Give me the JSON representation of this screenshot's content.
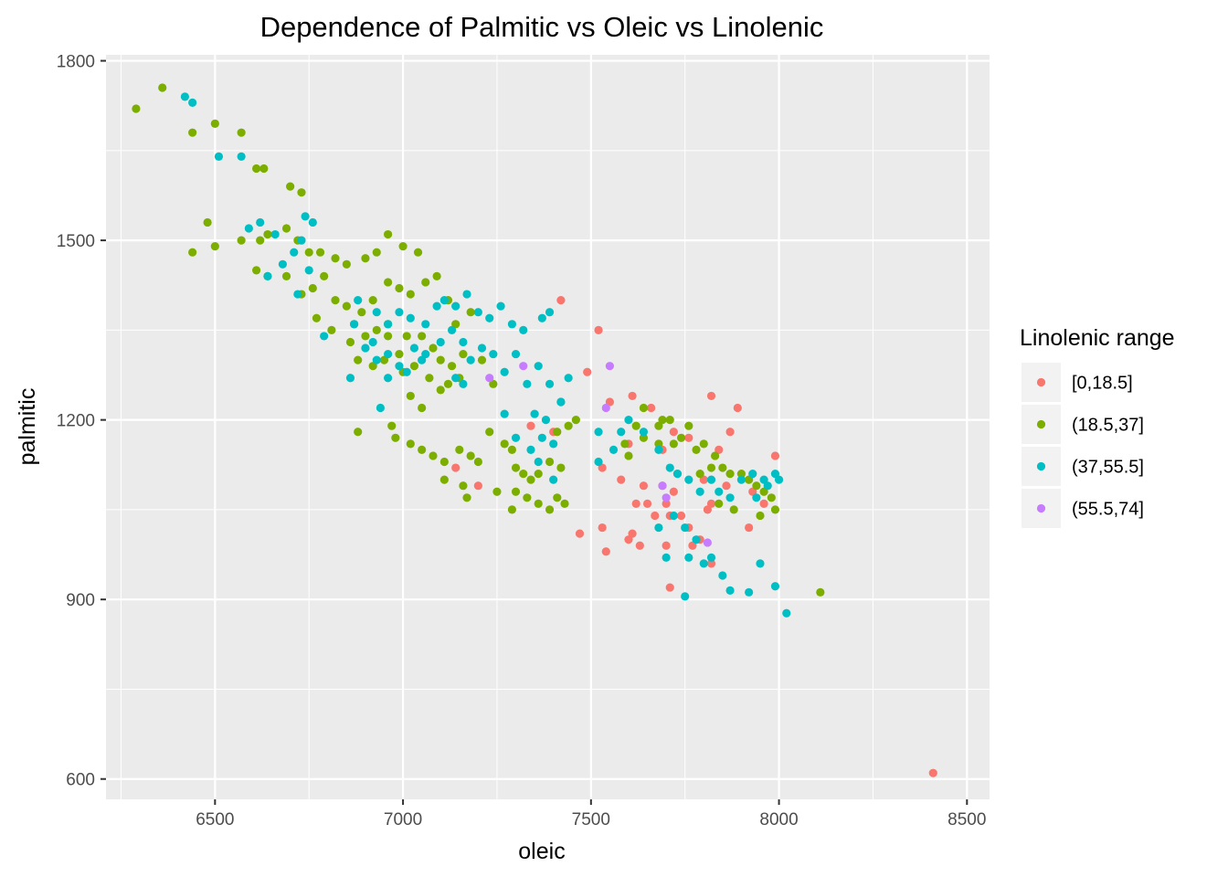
{
  "chart_data": {
    "type": "scatter",
    "title": "Dependence of Palmitic vs Oleic vs Linolenic",
    "xlabel": "oleic",
    "ylabel": "palmitic",
    "xlim": [
      6210,
      8560
    ],
    "ylim": [
      566,
      1810
    ],
    "x_ticks": [
      6500,
      7000,
      7500,
      8000,
      8500
    ],
    "y_ticks": [
      600,
      900,
      1200,
      1500,
      1800
    ],
    "x_tick_labels": [
      "6500",
      "7000",
      "7500",
      "8000",
      "8500"
    ],
    "y_tick_labels": [
      "600",
      "900",
      "1200",
      "1500",
      "1800"
    ],
    "grid": true,
    "panel_background": "#ebebeb",
    "legend": {
      "title": "Linolenic range",
      "placement": "right"
    },
    "series": [
      {
        "name": "[0,18.5]",
        "color": "#F8766D",
        "points": [
          [
            7420,
            1400
          ],
          [
            7520,
            1350
          ],
          [
            7490,
            1280
          ],
          [
            7550,
            1230
          ],
          [
            7610,
            1240
          ],
          [
            7660,
            1220
          ],
          [
            7720,
            1180
          ],
          [
            7820,
            1240
          ],
          [
            7890,
            1220
          ],
          [
            7870,
            1180
          ],
          [
            7840,
            1150
          ],
          [
            7760,
            1170
          ],
          [
            7690,
            1150
          ],
          [
            7600,
            1160
          ],
          [
            7530,
            1120
          ],
          [
            7580,
            1100
          ],
          [
            7640,
            1090
          ],
          [
            7720,
            1080
          ],
          [
            7800,
            1100
          ],
          [
            7860,
            1090
          ],
          [
            7930,
            1080
          ],
          [
            7990,
            1140
          ],
          [
            7650,
            1060
          ],
          [
            7700,
            1060
          ],
          [
            7740,
            1040
          ],
          [
            7620,
            1060
          ],
          [
            7670,
            1040
          ],
          [
            7760,
            1020
          ],
          [
            7710,
            1040
          ],
          [
            7790,
            1000
          ],
          [
            7810,
            1050
          ],
          [
            7920,
            1020
          ],
          [
            7530,
            1020
          ],
          [
            7610,
            1010
          ],
          [
            7470,
            1010
          ],
          [
            7630,
            990
          ],
          [
            7700,
            990
          ],
          [
            7770,
            990
          ],
          [
            7710,
            920
          ],
          [
            7820,
            960
          ],
          [
            7540,
            980
          ],
          [
            7140,
            1120
          ],
          [
            7200,
            1090
          ],
          [
            7400,
            1180
          ],
          [
            7340,
            1190
          ],
          [
            7960,
            1060
          ],
          [
            7690,
            1090
          ],
          [
            7820,
            1060
          ],
          [
            7730,
            1110
          ],
          [
            7600,
            1000
          ],
          [
            8410,
            610
          ]
        ]
      },
      {
        "name": "(18.5,37]",
        "color": "#7CAE00",
        "points": [
          [
            6290,
            1720
          ],
          [
            6360,
            1755
          ],
          [
            6440,
            1680
          ],
          [
            6500,
            1695
          ],
          [
            6570,
            1680
          ],
          [
            6610,
            1620
          ],
          [
            6630,
            1620
          ],
          [
            6700,
            1590
          ],
          [
            6730,
            1580
          ],
          [
            6480,
            1530
          ],
          [
            6440,
            1480
          ],
          [
            6500,
            1490
          ],
          [
            6570,
            1500
          ],
          [
            6620,
            1500
          ],
          [
            6640,
            1510
          ],
          [
            6690,
            1520
          ],
          [
            6720,
            1500
          ],
          [
            6750,
            1480
          ],
          [
            6780,
            1480
          ],
          [
            6820,
            1470
          ],
          [
            6850,
            1460
          ],
          [
            6900,
            1470
          ],
          [
            6930,
            1480
          ],
          [
            6960,
            1510
          ],
          [
            7000,
            1490
          ],
          [
            7040,
            1480
          ],
          [
            6610,
            1450
          ],
          [
            6640,
            1440
          ],
          [
            6690,
            1440
          ],
          [
            6730,
            1410
          ],
          [
            6760,
            1420
          ],
          [
            6790,
            1440
          ],
          [
            6820,
            1400
          ],
          [
            6850,
            1390
          ],
          [
            6890,
            1380
          ],
          [
            6920,
            1400
          ],
          [
            6960,
            1430
          ],
          [
            6990,
            1420
          ],
          [
            7020,
            1410
          ],
          [
            7060,
            1430
          ],
          [
            7090,
            1440
          ],
          [
            7120,
            1400
          ],
          [
            6770,
            1370
          ],
          [
            6810,
            1350
          ],
          [
            6870,
            1360
          ],
          [
            6900,
            1340
          ],
          [
            6930,
            1350
          ],
          [
            6960,
            1360
          ],
          [
            7010,
            1340
          ],
          [
            7050,
            1340
          ],
          [
            7080,
            1320
          ],
          [
            7100,
            1300
          ],
          [
            7130,
            1290
          ],
          [
            7160,
            1310
          ],
          [
            6950,
            1300
          ],
          [
            6990,
            1310
          ],
          [
            7030,
            1290
          ],
          [
            7000,
            1280
          ],
          [
            7070,
            1270
          ],
          [
            7120,
            1260
          ],
          [
            7150,
            1270
          ],
          [
            6880,
            1180
          ],
          [
            6970,
            1190
          ],
          [
            6980,
            1170
          ],
          [
            7020,
            1160
          ],
          [
            7050,
            1150
          ],
          [
            7080,
            1140
          ],
          [
            7110,
            1130
          ],
          [
            7150,
            1150
          ],
          [
            7180,
            1140
          ],
          [
            7110,
            1100
          ],
          [
            7160,
            1090
          ],
          [
            7170,
            1070
          ],
          [
            7200,
            1130
          ],
          [
            7230,
            1180
          ],
          [
            7270,
            1160
          ],
          [
            7290,
            1150
          ],
          [
            7300,
            1120
          ],
          [
            7320,
            1110
          ],
          [
            7340,
            1100
          ],
          [
            7360,
            1110
          ],
          [
            7390,
            1130
          ],
          [
            7420,
            1120
          ],
          [
            7300,
            1080
          ],
          [
            7330,
            1070
          ],
          [
            7360,
            1060
          ],
          [
            7390,
            1050
          ],
          [
            7410,
            1070
          ],
          [
            7430,
            1060
          ],
          [
            7250,
            1080
          ],
          [
            7290,
            1050
          ],
          [
            7410,
            1180
          ],
          [
            7440,
            1190
          ],
          [
            7460,
            1200
          ],
          [
            7590,
            1160
          ],
          [
            7620,
            1190
          ],
          [
            7640,
            1170
          ],
          [
            7680,
            1160
          ],
          [
            7710,
            1200
          ],
          [
            7740,
            1170
          ],
          [
            7760,
            1190
          ],
          [
            7780,
            1150
          ],
          [
            7800,
            1160
          ],
          [
            7830,
            1140
          ],
          [
            7850,
            1120
          ],
          [
            7870,
            1110
          ],
          [
            7900,
            1110
          ],
          [
            7920,
            1100
          ],
          [
            7940,
            1090
          ],
          [
            7960,
            1080
          ],
          [
            7980,
            1070
          ],
          [
            7990,
            1050
          ],
          [
            7950,
            1040
          ],
          [
            7880,
            1050
          ],
          [
            7840,
            1060
          ],
          [
            8110,
            912
          ],
          [
            7690,
            1200
          ],
          [
            7720,
            1160
          ],
          [
            7790,
            1110
          ],
          [
            7640,
            1220
          ],
          [
            7680,
            1190
          ],
          [
            7820,
            1120
          ],
          [
            7600,
            1140
          ],
          [
            7020,
            1240
          ],
          [
            7050,
            1220
          ],
          [
            7100,
            1250
          ],
          [
            6920,
            1290
          ],
          [
            6860,
            1330
          ],
          [
            6880,
            1300
          ],
          [
            6960,
            1340
          ],
          [
            7140,
            1360
          ],
          [
            7180,
            1380
          ],
          [
            7210,
            1300
          ],
          [
            7240,
            1260
          ]
        ]
      },
      {
        "name": "(37,55.5]",
        "color": "#00BFC4",
        "points": [
          [
            6420,
            1740
          ],
          [
            6440,
            1730
          ],
          [
            6510,
            1640
          ],
          [
            6570,
            1640
          ],
          [
            6590,
            1520
          ],
          [
            6620,
            1530
          ],
          [
            6660,
            1510
          ],
          [
            6710,
            1480
          ],
          [
            6740,
            1540
          ],
          [
            6760,
            1530
          ],
          [
            6730,
            1500
          ],
          [
            6640,
            1440
          ],
          [
            6680,
            1460
          ],
          [
            6750,
            1450
          ],
          [
            6720,
            1410
          ],
          [
            6790,
            1340
          ],
          [
            6880,
            1400
          ],
          [
            6930,
            1380
          ],
          [
            6960,
            1360
          ],
          [
            6990,
            1380
          ],
          [
            7020,
            1370
          ],
          [
            7060,
            1360
          ],
          [
            7090,
            1390
          ],
          [
            7110,
            1400
          ],
          [
            7140,
            1390
          ],
          [
            7170,
            1410
          ],
          [
            7200,
            1380
          ],
          [
            7230,
            1370
          ],
          [
            7260,
            1390
          ],
          [
            7290,
            1360
          ],
          [
            7320,
            1350
          ],
          [
            7370,
            1370
          ],
          [
            7390,
            1380
          ],
          [
            6870,
            1360
          ],
          [
            6900,
            1320
          ],
          [
            6930,
            1300
          ],
          [
            6960,
            1310
          ],
          [
            6990,
            1290
          ],
          [
            7030,
            1320
          ],
          [
            7060,
            1310
          ],
          [
            7100,
            1330
          ],
          [
            7130,
            1350
          ],
          [
            7160,
            1330
          ],
          [
            7180,
            1300
          ],
          [
            7210,
            1320
          ],
          [
            7240,
            1310
          ],
          [
            7270,
            1280
          ],
          [
            7300,
            1310
          ],
          [
            7330,
            1260
          ],
          [
            7360,
            1290
          ],
          [
            7390,
            1260
          ],
          [
            7420,
            1230
          ],
          [
            7440,
            1270
          ],
          [
            6860,
            1270
          ],
          [
            6960,
            1270
          ],
          [
            6940,
            1220
          ],
          [
            7350,
            1210
          ],
          [
            7380,
            1200
          ],
          [
            7420,
            1230
          ],
          [
            7270,
            1210
          ],
          [
            7300,
            1170
          ],
          [
            7360,
            1130
          ],
          [
            7400,
            1100
          ],
          [
            7520,
            1130
          ],
          [
            7560,
            1150
          ],
          [
            7520,
            1180
          ],
          [
            7580,
            1180
          ],
          [
            7600,
            1200
          ],
          [
            7640,
            1180
          ],
          [
            7680,
            1150
          ],
          [
            7710,
            1120
          ],
          [
            7730,
            1110
          ],
          [
            7760,
            1100
          ],
          [
            7790,
            1080
          ],
          [
            7820,
            1100
          ],
          [
            7840,
            1080
          ],
          [
            7870,
            1070
          ],
          [
            7900,
            1100
          ],
          [
            7930,
            1110
          ],
          [
            7960,
            1100
          ],
          [
            7990,
            1110
          ],
          [
            8000,
            1100
          ],
          [
            7720,
            1040
          ],
          [
            7750,
            1020
          ],
          [
            7780,
            1000
          ],
          [
            7800,
            960
          ],
          [
            7820,
            970
          ],
          [
            7760,
            970
          ],
          [
            7700,
            970
          ],
          [
            7750,
            905
          ],
          [
            7870,
            915
          ],
          [
            7920,
            912
          ],
          [
            7950,
            960
          ],
          [
            7990,
            922
          ],
          [
            8020,
            877
          ],
          [
            7850,
            940
          ],
          [
            7680,
            1020
          ],
          [
            7940,
            1070
          ],
          [
            7970,
            1090
          ],
          [
            7140,
            1270
          ],
          [
            7160,
            1260
          ],
          [
            7010,
            1280
          ],
          [
            7050,
            1300
          ],
          [
            6920,
            1330
          ],
          [
            7400,
            1160
          ],
          [
            7340,
            1150
          ],
          [
            7370,
            1170
          ]
        ]
      },
      {
        "name": "(55.5,74]",
        "color": "#C77CFF",
        "points": [
          [
            7230,
            1270
          ],
          [
            7320,
            1290
          ],
          [
            7550,
            1290
          ],
          [
            7540,
            1220
          ],
          [
            7690,
            1090
          ],
          [
            7700,
            1070
          ],
          [
            7810,
            995
          ]
        ]
      }
    ]
  }
}
